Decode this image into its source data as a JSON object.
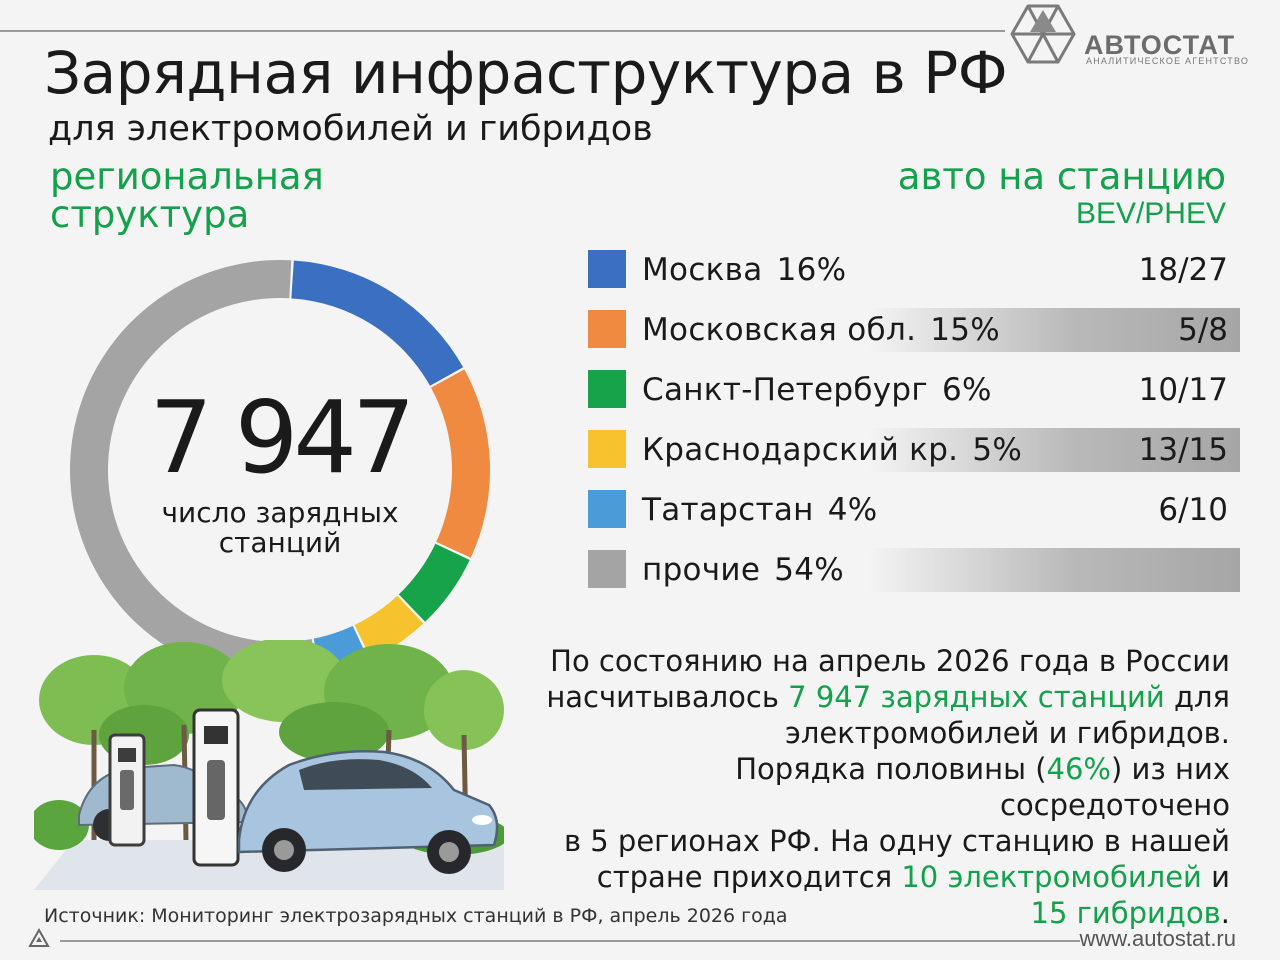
{
  "brand": {
    "name": "АВТОСТАТ",
    "tagline": "АНАЛИТИЧЕСКОЕ АГЕНТСТВО",
    "url": "www.autostat.ru"
  },
  "title": "Зарядная инфраструктура в РФ",
  "subtitle": "для электромобилей и гибридов",
  "left_heading": {
    "line1": "региональная",
    "line2": "структура"
  },
  "right_heading": {
    "line1": "авто на станцию",
    "line2": "BEV/PHEV"
  },
  "center": {
    "value": "7 947",
    "label_line1": "число зарядных",
    "label_line2": "станций"
  },
  "colors": {
    "accent_green": "#13a14b"
  },
  "chart_data": {
    "type": "pie",
    "donut": true,
    "total": 7947,
    "categories": [
      "Москва",
      "Московская обл.",
      "Санкт-Петербург",
      "Краснодарский кр.",
      "Татарстан",
      "прочие"
    ],
    "values": [
      16,
      15,
      6,
      5,
      4,
      54
    ],
    "colors": [
      "#3a6fc2",
      "#f08a40",
      "#17a34a",
      "#f6c22e",
      "#4c9bd9",
      "#a4a4a4"
    ],
    "legend": [
      {
        "name": "Москва",
        "pct": "16%",
        "ratio": "18/27",
        "color": "#3a6fc2",
        "shaded": false
      },
      {
        "name": "Московская обл.",
        "pct": "15%",
        "ratio": "5/8",
        "color": "#f08a40",
        "shaded": true
      },
      {
        "name": "Санкт-Петербург",
        "pct": "6%",
        "ratio": "10/17",
        "color": "#17a34a",
        "shaded": false
      },
      {
        "name": "Краснодарский кр.",
        "pct": "5%",
        "ratio": "13/15",
        "color": "#f6c22e",
        "shaded": true
      },
      {
        "name": "Татарстан",
        "pct": "4%",
        "ratio": "6/10",
        "color": "#4c9bd9",
        "shaded": false
      },
      {
        "name": "прочие",
        "pct": "54%",
        "ratio": "",
        "color": "#a4a4a4",
        "shaded": true
      }
    ]
  },
  "paragraph": {
    "l1": "По состоянию на апрель 2026 года в России",
    "l2a": "насчитывалось ",
    "l2b": "7 947 зарядных станций",
    "l2c": " для",
    "l3": "электромобилей и гибридов.",
    "l4a": "Порядка половины (",
    "l4b": "46%",
    "l4c": ") из них сосредоточено",
    "l5": "в 5 регионах РФ. На одну станцию в нашей",
    "l6a": "стране приходится ",
    "l6b": "10 электромобилей",
    "l6c": " и",
    "l7a": "15 гибридов",
    "l7b": "."
  },
  "source": "Источник: Мониторинг электрозарядных станций в РФ, апрель 2026 года"
}
